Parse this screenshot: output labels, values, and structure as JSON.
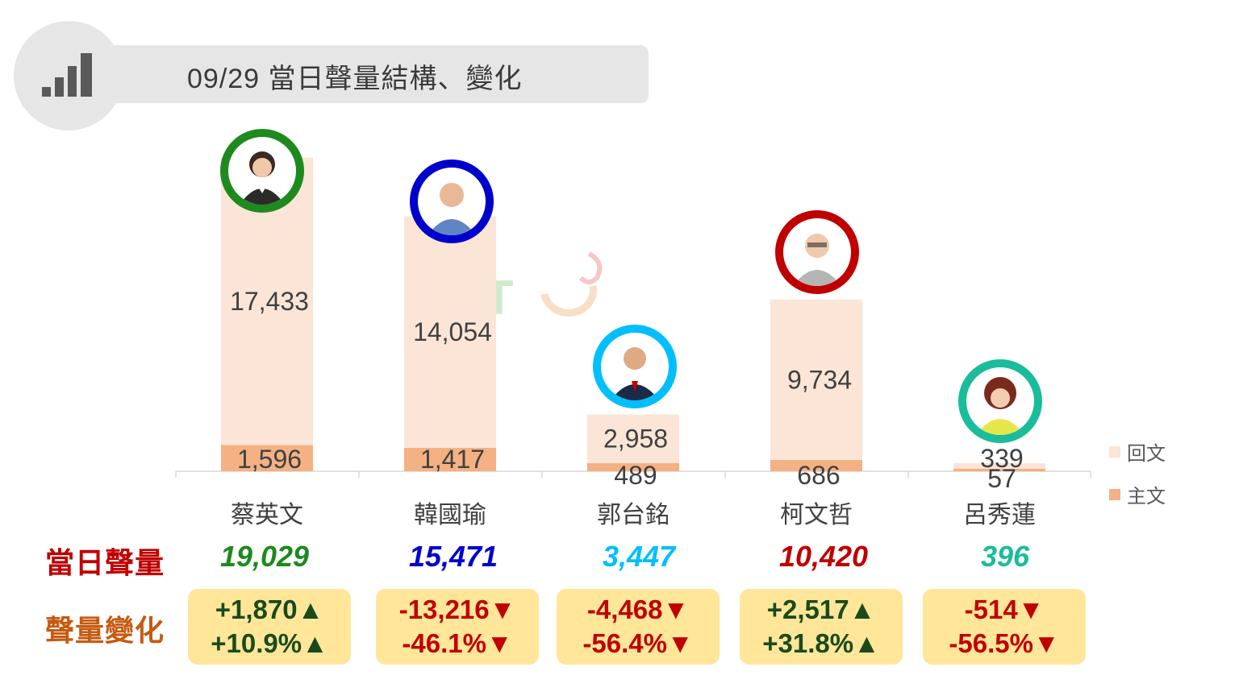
{
  "header": {
    "title": "09/29 當日聲量結構、變化",
    "icon": "bar-signal-icon"
  },
  "row_labels": {
    "total": "當日聲量",
    "change": "聲量變化"
  },
  "colors": {
    "reply": "#fbe5d6",
    "post": "#f4b183",
    "total_label": "#c00000",
    "change_label": "#c55a11",
    "up": "#1a4a1a",
    "down": "#c00000",
    "change_box": "#ffe699"
  },
  "legend": [
    {
      "label": "回文",
      "color": "#fbe5d6"
    },
    {
      "label": "主文",
      "color": "#f4b183"
    }
  ],
  "candidates": [
    {
      "name": "蔡英文",
      "total": "19,029",
      "color": "#1e8a1e",
      "change_abs": "+1,870▲",
      "change_pct": "+10.9%▲",
      "direction": "up"
    },
    {
      "name": "韓國瑜",
      "total": "15,471",
      "color": "#0000cc",
      "change_abs": "-13,216▼",
      "change_pct": "-46.1%▼",
      "direction": "down"
    },
    {
      "name": "郭台銘",
      "total": "3,447",
      "color": "#00bfff",
      "change_abs": "-4,468▼",
      "change_pct": "-56.4%▼",
      "direction": "down"
    },
    {
      "name": "柯文哲",
      "total": "10,420",
      "color": "#c00000",
      "change_abs": "+2,517▲",
      "change_pct": "+31.8%▲",
      "direction": "up"
    },
    {
      "name": "呂秀蓮",
      "total": "396",
      "color": "#1abc9c",
      "change_abs": "-514▼",
      "change_pct": "-56.5%▼",
      "direction": "down"
    }
  ],
  "chart_data": {
    "type": "bar",
    "stacked": true,
    "categories": [
      "蔡英文",
      "韓國瑜",
      "郭台銘",
      "柯文哲",
      "呂秀蓮"
    ],
    "series": [
      {
        "name": "主文",
        "values": [
          1596,
          1417,
          489,
          686,
          57
        ],
        "labels": [
          "1,596",
          "1,417",
          "489",
          "686",
          "57"
        ]
      },
      {
        "name": "回文",
        "values": [
          17433,
          14054,
          2958,
          9734,
          339
        ],
        "labels": [
          "17,433",
          "14,054",
          "2,958",
          "9,734",
          "339"
        ]
      }
    ],
    "legend_position": "right",
    "grid": false
  }
}
